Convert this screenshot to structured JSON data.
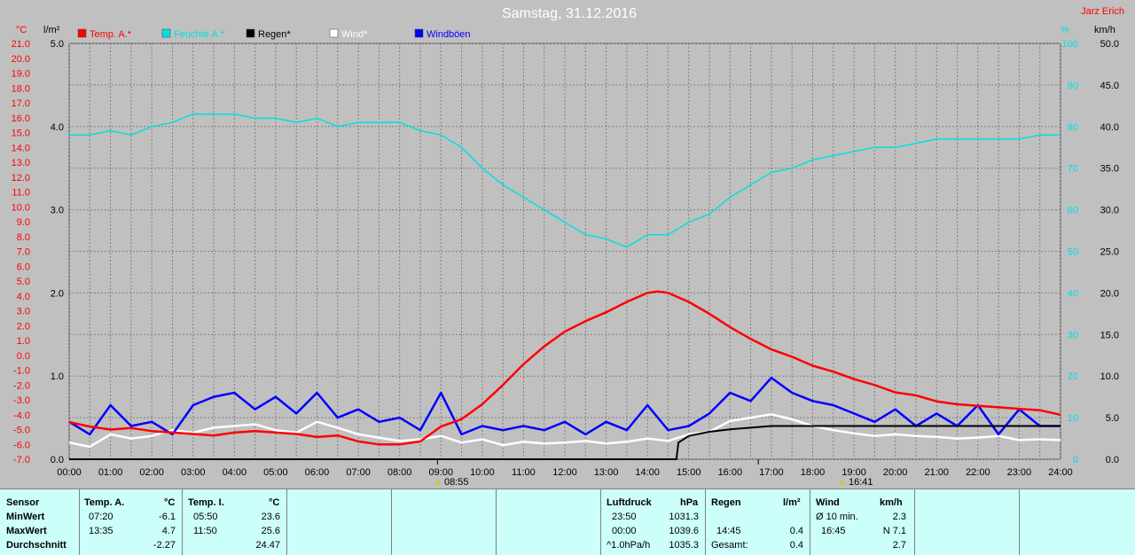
{
  "title": "Samstag, 31.12.2016",
  "author": "Jarz Erich",
  "colors": {
    "temp": "#ff0000",
    "humidity": "#00e0e0",
    "rain": "#000000",
    "wind": "#ffffff",
    "gust": "#0000ff",
    "grid": "#808080",
    "plot_bg": "#c0c0c0",
    "table_bg": "#ccfffa"
  },
  "axes": {
    "temp_unit": "°C",
    "rain_unit": "l/m²",
    "hum_unit": "%",
    "wind_unit": "km/h",
    "temp_ticks": [
      "21.0",
      "20.0",
      "19.0",
      "18.0",
      "17.0",
      "16.0",
      "15.0",
      "14.0",
      "13.0",
      "12.0",
      "11.0",
      "10.0",
      "9.0",
      "8.0",
      "7.0",
      "6.0",
      "5.0",
      "4.0",
      "3.0",
      "2.0",
      "1.0",
      "0.0",
      "-1.0",
      "-2.0",
      "-3.0",
      "-4.0",
      "-5.0",
      "-6.0",
      "-7.0"
    ],
    "rain_ticks": [
      "5.0",
      "4.0",
      "3.0",
      "2.0",
      "1.0",
      "0.0"
    ],
    "hum_ticks": [
      "100",
      "90",
      "80",
      "70",
      "60",
      "50",
      "40",
      "30",
      "20",
      "10",
      "0"
    ],
    "wind_ticks": [
      "50.0",
      "45.0",
      "40.0",
      "35.0",
      "30.0",
      "25.0",
      "20.0",
      "15.0",
      "10.0",
      "5.0",
      "0.0"
    ],
    "time_ticks": [
      "00:00",
      "01:00",
      "02:00",
      "03:00",
      "04:00",
      "05:00",
      "06:00",
      "07:00",
      "08:00",
      "09:00",
      "10:00",
      "11:00",
      "12:00",
      "13:00",
      "14:00",
      "15:00",
      "16:00",
      "17:00",
      "18:00",
      "19:00",
      "20:00",
      "21:00",
      "22:00",
      "23:00",
      "24:00"
    ],
    "sunrise": "08:55",
    "sunset": "16:41"
  },
  "chart_data": {
    "type": "line",
    "x_unit": "hour of day",
    "xlim": [
      0,
      24
    ],
    "axes_ranges": {
      "temp": [
        -7,
        21
      ],
      "rain": [
        0,
        5
      ],
      "humidity": [
        0,
        100
      ],
      "wind": [
        0,
        50
      ]
    },
    "grid": true,
    "legend_position": "top-left",
    "series": [
      {
        "name": "Temp. A.*",
        "axis": "temp",
        "color": "#ff0000",
        "x": [
          0,
          0.5,
          1,
          1.5,
          2,
          2.5,
          3,
          3.5,
          4,
          4.5,
          5,
          5.5,
          6,
          6.5,
          7,
          7.5,
          8,
          8.5,
          9,
          9.5,
          10,
          10.5,
          11,
          11.5,
          12,
          12.5,
          13,
          13.5,
          14,
          14.25,
          14.5,
          15,
          15.5,
          16,
          16.5,
          17,
          17.5,
          18,
          18.5,
          19,
          19.5,
          20,
          20.5,
          21,
          21.5,
          22,
          22.5,
          23,
          23.5,
          24
        ],
        "y": [
          -4.5,
          -4.8,
          -5.0,
          -4.9,
          -5.1,
          -5.2,
          -5.3,
          -5.4,
          -5.2,
          -5.1,
          -5.2,
          -5.3,
          -5.5,
          -5.4,
          -5.8,
          -6.0,
          -6.0,
          -5.8,
          -4.8,
          -4.3,
          -3.3,
          -2.0,
          -0.6,
          0.6,
          1.6,
          2.3,
          2.9,
          3.6,
          4.2,
          4.3,
          4.2,
          3.6,
          2.8,
          1.9,
          1.1,
          0.4,
          -0.1,
          -0.7,
          -1.1,
          -1.6,
          -2.0,
          -2.5,
          -2.7,
          -3.1,
          -3.3,
          -3.4,
          -3.5,
          -3.6,
          -3.7,
          -4.0
        ]
      },
      {
        "name": "Feuchte A.*",
        "axis": "humidity",
        "color": "#00e0e0",
        "x": [
          0,
          0.5,
          1,
          1.5,
          2,
          2.5,
          3,
          3.5,
          4,
          4.5,
          5,
          5.5,
          6,
          6.5,
          7,
          7.5,
          8,
          8.5,
          9,
          9.5,
          10,
          10.5,
          11,
          11.5,
          12,
          12.5,
          13,
          13.5,
          14,
          14.5,
          15,
          15.5,
          16,
          16.5,
          17,
          17.5,
          18,
          18.5,
          19,
          19.5,
          20,
          20.5,
          21,
          21.5,
          22,
          22.5,
          23,
          23.5,
          24
        ],
        "y": [
          78,
          78,
          79,
          78,
          80,
          81,
          83,
          83,
          83,
          82,
          82,
          81,
          82,
          80,
          81,
          81,
          81,
          79,
          78,
          75,
          70,
          66,
          63,
          60,
          57,
          54,
          53,
          51,
          54,
          54,
          57,
          59,
          63,
          66,
          69,
          70,
          72,
          73,
          74,
          75,
          75,
          76,
          77,
          77,
          77,
          77,
          77,
          78,
          78
        ]
      },
      {
        "name": "Regen*",
        "axis": "rain",
        "color": "#000000",
        "x": [
          0,
          14.7,
          14.75,
          15,
          15.5,
          16,
          16.5,
          17,
          24
        ],
        "y": [
          0,
          0,
          0.2,
          0.28,
          0.33,
          0.36,
          0.38,
          0.4,
          0.4
        ]
      },
      {
        "name": "Wind*",
        "axis": "wind",
        "color": "#ffffff",
        "x": [
          0,
          0.5,
          1,
          1.5,
          2,
          2.5,
          3,
          3.5,
          4,
          4.5,
          5,
          5.5,
          6,
          6.5,
          7,
          7.5,
          8,
          8.5,
          9,
          9.5,
          10,
          10.5,
          11,
          11.5,
          12,
          12.5,
          13,
          13.5,
          14,
          14.5,
          15,
          15.5,
          16,
          16.5,
          17,
          17.5,
          18,
          18.5,
          19,
          19.5,
          20,
          20.5,
          21,
          21.5,
          22,
          22.5,
          23,
          23.5,
          24
        ],
        "y": [
          2.0,
          1.5,
          3.0,
          2.5,
          2.8,
          3.5,
          3.2,
          3.8,
          4.0,
          4.2,
          3.5,
          3.2,
          4.5,
          3.8,
          3.0,
          2.6,
          2.2,
          2.4,
          2.8,
          2.0,
          2.4,
          1.7,
          2.1,
          1.9,
          2.0,
          2.2,
          1.9,
          2.1,
          2.5,
          2.2,
          3.0,
          3.3,
          4.6,
          5.0,
          5.4,
          4.8,
          4.0,
          3.5,
          3.1,
          2.8,
          3.0,
          2.8,
          2.7,
          2.5,
          2.6,
          2.8,
          2.3,
          2.4,
          2.3
        ]
      },
      {
        "name": "Windböen",
        "axis": "wind",
        "color": "#0000ff",
        "x": [
          0,
          0.5,
          1,
          1.5,
          2,
          2.5,
          3,
          3.5,
          4,
          4.5,
          5,
          5.5,
          6,
          6.5,
          7,
          7.5,
          8,
          8.5,
          9,
          9.5,
          10,
          10.5,
          11,
          11.5,
          12,
          12.5,
          13,
          13.5,
          14,
          14.5,
          15,
          15.5,
          16,
          16.5,
          17,
          17.5,
          18,
          18.5,
          19,
          19.5,
          20,
          20.5,
          21,
          21.5,
          22,
          22.5,
          23,
          23.5,
          24
        ],
        "y": [
          4.5,
          3.0,
          6.5,
          4.0,
          4.5,
          3.0,
          6.5,
          7.5,
          8.0,
          6.0,
          7.5,
          5.5,
          8.0,
          5.0,
          6.0,
          4.5,
          5.0,
          3.5,
          8.0,
          3.0,
          4.0,
          3.5,
          4.0,
          3.5,
          4.5,
          3.0,
          4.5,
          3.5,
          6.5,
          3.5,
          4.0,
          5.5,
          8.0,
          7.0,
          9.8,
          8.0,
          7.0,
          6.5,
          5.5,
          4.5,
          6.0,
          4.0,
          5.5,
          4.0,
          6.5,
          3.0,
          6.0,
          4.0,
          4.0
        ]
      }
    ]
  },
  "table": {
    "sensor": "Sensor",
    "minwert": "MinWert",
    "maxwert": "MaxWert",
    "durchschnitt": "Durchschnitt",
    "temp_a": {
      "header": "Temp. A.",
      "unit": "°C",
      "min_time": "07:20",
      "min": "-6.1",
      "max_time": "13:35",
      "max": "4.7",
      "avg": "-2.27"
    },
    "temp_i": {
      "header": "Temp. I.",
      "unit": "°C",
      "min_time": "05:50",
      "min": "23.6",
      "max_time": "11:50",
      "max": "25.6",
      "avg": "24.47"
    },
    "luftdruck": {
      "header": "Luftdruck",
      "unit": "hPa",
      "r1_label": "23:50",
      "r1": "1031.3",
      "r2_label": "00:00",
      "r2": "1039.6",
      "r3_label": "^1.0hPa/h",
      "r3": "1035.3"
    },
    "regen": {
      "header": "Regen",
      "unit": "l/m²",
      "r2_label": "14:45",
      "r2": "0.4",
      "r3_label": "Gesamt:",
      "r3": "0.4"
    },
    "wind": {
      "header": "Wind",
      "unit": "km/h",
      "r1_label": "Ø 10 min.",
      "r1": "2.3",
      "r2_label": "16:45",
      "r2": "N 7.1",
      "r3": "2.7"
    }
  }
}
